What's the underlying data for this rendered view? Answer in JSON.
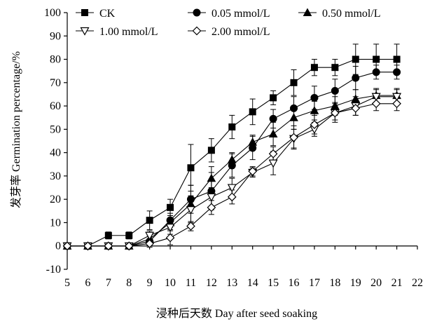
{
  "chart_data": {
    "type": "line",
    "xlabel": "浸种后天数 Day after seed soaking",
    "ylabel": "发芽率 Germination percentage/%",
    "xlim": [
      5,
      22
    ],
    "ylim": [
      -10,
      100
    ],
    "xticks": [
      5,
      6,
      7,
      8,
      9,
      10,
      11,
      12,
      13,
      14,
      15,
      16,
      17,
      18,
      19,
      20,
      21,
      22
    ],
    "yticks": [
      -10,
      0,
      10,
      20,
      30,
      40,
      50,
      60,
      70,
      80,
      90,
      100
    ],
    "grid": false,
    "legend_position": "top",
    "series": [
      {
        "name": "CK",
        "marker": "square-filled",
        "x": [
          5,
          6,
          7,
          8,
          9,
          10,
          11,
          12,
          13,
          14,
          15,
          16,
          17,
          18,
          19,
          20,
          21
        ],
        "values": [
          0,
          0,
          4.5,
          4.5,
          11,
          16.5,
          33.5,
          41,
          51,
          57.5,
          63.5,
          70,
          76.5,
          76.5,
          80,
          80,
          80
        ],
        "errors": [
          0,
          0,
          1.5,
          1.5,
          4,
          3.5,
          10,
          5,
          5,
          5.5,
          3,
          5.5,
          3.5,
          3.5,
          6.5,
          6.5,
          6.5
        ]
      },
      {
        "name": "0.05 mmol/L",
        "marker": "circle-filled",
        "x": [
          5,
          6,
          7,
          8,
          9,
          10,
          11,
          12,
          13,
          14,
          15,
          16,
          17,
          18,
          19,
          20,
          21
        ],
        "values": [
          0,
          0,
          0,
          0,
          2,
          11,
          20,
          23.5,
          34.5,
          42,
          54.5,
          59,
          63.5,
          66.5,
          72,
          74.5,
          74.5
        ],
        "errors": [
          0,
          0,
          0,
          0,
          2,
          3,
          6,
          8,
          5,
          5,
          4,
          5,
          5,
          5,
          5,
          3,
          3
        ]
      },
      {
        "name": "0.50 mmol/L",
        "marker": "triangle-filled",
        "x": [
          5,
          6,
          7,
          8,
          9,
          10,
          11,
          12,
          13,
          14,
          15,
          16,
          17,
          18,
          19,
          20,
          21
        ],
        "values": [
          0,
          0,
          0,
          0,
          3,
          10,
          18,
          29,
          37,
          44.5,
          48,
          55,
          58,
          60,
          63,
          64.5,
          64.5
        ],
        "errors": [
          0,
          0,
          0,
          0,
          1.5,
          3,
          8,
          5,
          3,
          3,
          5,
          5,
          4,
          4,
          4,
          3,
          3
        ]
      },
      {
        "name": "1.00 mmol/L",
        "marker": "triangle-down-open",
        "x": [
          5,
          6,
          7,
          8,
          9,
          10,
          11,
          12,
          13,
          14,
          15,
          16,
          17,
          18,
          19,
          20,
          21
        ],
        "values": [
          0,
          0,
          0,
          0,
          4.5,
          8,
          15.5,
          21,
          25,
          31.5,
          35.5,
          46,
          50,
          57,
          60,
          64,
          64
        ],
        "errors": [
          0,
          0,
          0,
          0,
          2,
          3,
          6,
          4,
          4,
          2,
          5,
          4,
          3,
          3,
          4,
          3,
          3
        ]
      },
      {
        "name": "2.00 mmol/L",
        "marker": "diamond-open",
        "x": [
          5,
          6,
          7,
          8,
          9,
          10,
          11,
          12,
          13,
          14,
          15,
          16,
          17,
          18,
          19,
          20,
          21
        ],
        "values": [
          0,
          0,
          0,
          0,
          1,
          3.5,
          8.5,
          16.5,
          21,
          32,
          39.5,
          46.5,
          52,
          57,
          59,
          61,
          61
        ],
        "errors": [
          0,
          0,
          0,
          0,
          1.5,
          3,
          2,
          3,
          3,
          2,
          3,
          5,
          4,
          4,
          3,
          3,
          3
        ]
      }
    ]
  }
}
